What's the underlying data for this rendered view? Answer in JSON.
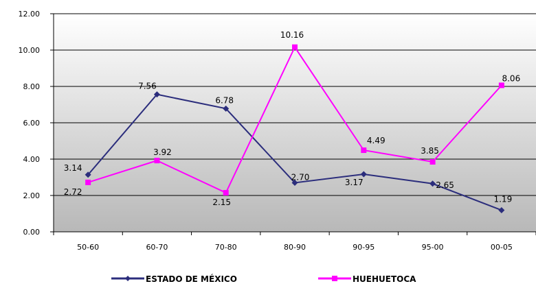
{
  "chart_data": {
    "type": "line",
    "categories": [
      "50-60",
      "60-70",
      "70-80",
      "80-90",
      "90-95",
      "95-00",
      "00-05"
    ],
    "ylim": [
      0,
      12
    ],
    "yticks": [
      "0.00",
      "2.00",
      "4.00",
      "6.00",
      "8.00",
      "10.00",
      "12.00"
    ],
    "grid": true,
    "legend_position": "bottom",
    "series": [
      {
        "name": "ESTADO DE MÉXICO",
        "color": "#2b2d7c",
        "values": [
          3.14,
          7.56,
          6.78,
          2.7,
          3.17,
          2.65,
          1.19
        ],
        "labels": [
          "3.14",
          "7.56",
          "6.78",
          "2.70",
          "3.17",
          "2.65",
          "1.19"
        ]
      },
      {
        "name": "HUEHUETOCA",
        "color": "#ff00ff",
        "values": [
          2.72,
          3.92,
          2.15,
          10.16,
          4.49,
          3.85,
          8.06
        ],
        "labels": [
          "2.72",
          "3.92",
          "2.15",
          "10.16",
          "4.49",
          "3.85",
          "8.06"
        ]
      }
    ]
  }
}
